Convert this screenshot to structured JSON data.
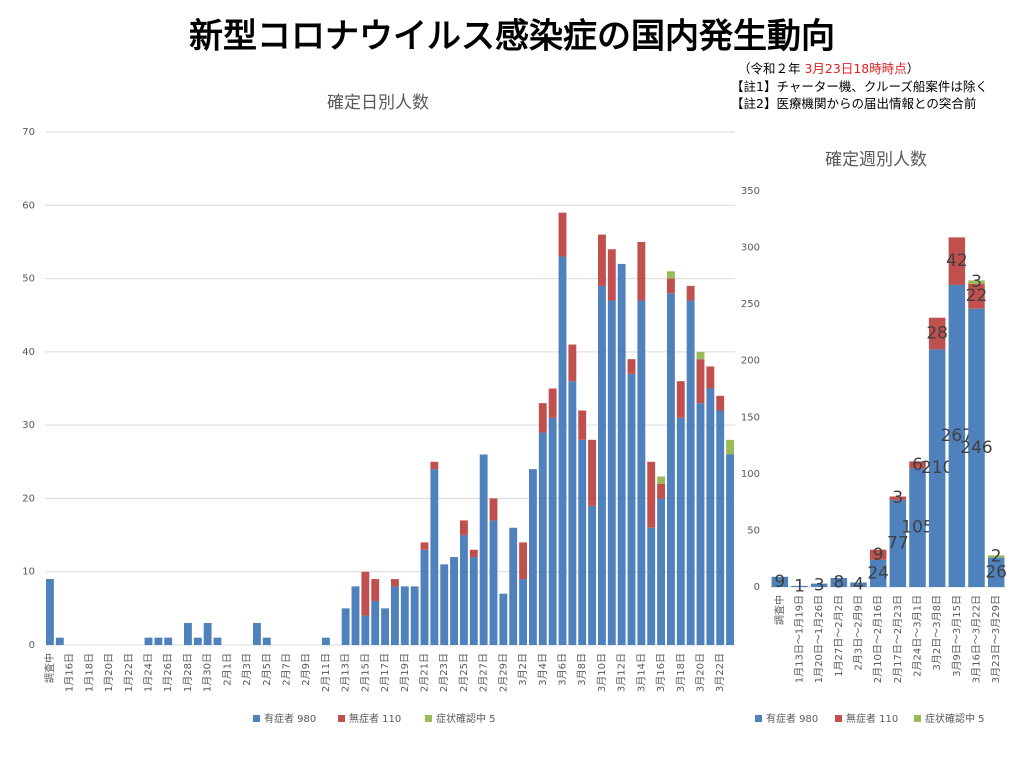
{
  "header": {
    "title": "新型コロナウイルス感染症の国内発生動向",
    "note_date": [
      "（令和２年 ",
      "3月23日18時時点",
      "）"
    ],
    "notes": [
      "【註1】チャーター機、クルーズ船案件は除く",
      "【註2】医療機関からの届出情報との突合前"
    ]
  },
  "chart_data": [
    {
      "type": "bar",
      "stacked": true,
      "title": "確定日別人数",
      "grid": true,
      "legend": "bottom",
      "data_labels": false,
      "ylim": [
        0,
        70
      ],
      "yticks": [
        0,
        10,
        20,
        30,
        40,
        50,
        60,
        70
      ],
      "categories": [
        "調査中",
        null,
        "1月16日",
        null,
        "1月18日",
        null,
        "1月20日",
        null,
        "1月22日",
        null,
        "1月24日",
        null,
        "1月26日",
        null,
        "1月28日",
        null,
        "1月30日",
        null,
        "2月1日",
        null,
        "2月3日",
        null,
        "2月5日",
        null,
        "2月7日",
        null,
        "2月9日",
        null,
        "2月11日",
        null,
        "2月13日",
        null,
        "2月15日",
        null,
        "2月17日",
        null,
        "2月19日",
        null,
        "2月21日",
        null,
        "2月23日",
        null,
        "2月25日",
        null,
        "2月27日",
        null,
        "2月29日",
        null,
        "3月2日",
        null,
        "3月4日",
        null,
        "3月6日",
        null,
        "3月8日",
        null,
        "3月10日",
        null,
        "3月12日",
        null,
        "3月14日",
        null,
        "3月16日",
        null,
        "3月18日",
        null,
        "3月20日",
        null,
        "3月22日",
        null
      ],
      "series": [
        {
          "name": "有症者 980",
          "color": "#4f81bd",
          "values": [
            9,
            1,
            0,
            0,
            0,
            0,
            0,
            0,
            0,
            0,
            1,
            1,
            1,
            0,
            3,
            1,
            3,
            1,
            0,
            0,
            0,
            3,
            1,
            0,
            0,
            0,
            0,
            0,
            1,
            0,
            5,
            8,
            4,
            6,
            5,
            8,
            8,
            8,
            13,
            24,
            11,
            12,
            15,
            12,
            26,
            17,
            7,
            16,
            9,
            24,
            29,
            31,
            53,
            36,
            28,
            19,
            49,
            47,
            52,
            37,
            47,
            16,
            20,
            48,
            31,
            47,
            33,
            35,
            32,
            26
          ]
        },
        {
          "name": "無症者 110",
          "color": "#c0504d",
          "values": [
            0,
            0,
            0,
            0,
            0,
            0,
            0,
            0,
            0,
            0,
            0,
            0,
            0,
            0,
            0,
            0,
            0,
            0,
            0,
            0,
            0,
            0,
            0,
            0,
            0,
            0,
            0,
            0,
            0,
            0,
            0,
            0,
            6,
            3,
            0,
            1,
            0,
            0,
            1,
            1,
            0,
            0,
            2,
            1,
            0,
            3,
            0,
            0,
            5,
            0,
            4,
            4,
            6,
            5,
            4,
            9,
            7,
            7,
            0,
            2,
            8,
            9,
            2,
            2,
            5,
            2,
            6,
            3,
            2,
            0
          ]
        },
        {
          "name": "症状確認中 5",
          "color": "#9bbb59",
          "values": [
            0,
            0,
            0,
            0,
            0,
            0,
            0,
            0,
            0,
            0,
            0,
            0,
            0,
            0,
            0,
            0,
            0,
            0,
            0,
            0,
            0,
            0,
            0,
            0,
            0,
            0,
            0,
            0,
            0,
            0,
            0,
            0,
            0,
            0,
            0,
            0,
            0,
            0,
            0,
            0,
            0,
            0,
            0,
            0,
            0,
            0,
            0,
            0,
            0,
            0,
            0,
            0,
            0,
            0,
            0,
            0,
            0,
            0,
            0,
            0,
            0,
            0,
            1,
            1,
            0,
            0,
            1,
            0,
            0,
            2
          ]
        }
      ]
    },
    {
      "type": "bar",
      "stacked": true,
      "title": "確定週別人数",
      "grid": false,
      "legend": "bottom",
      "data_labels": true,
      "ylim": [
        0,
        350
      ],
      "yticks": [
        0,
        50,
        100,
        150,
        200,
        250,
        300,
        350
      ],
      "categories": [
        "調査中",
        "1月13日～1月19日",
        "1月20日～1月26日",
        "1月27日～2月2日",
        "2月3日～2月9日",
        "2月10日～2月16日",
        "2月17日～2月23日",
        "2月24日～3月1日",
        "3月2日～3月8日",
        "3月9日～3月15日",
        "3月16日～3月22日",
        "3月23日～3月29日"
      ],
      "series": [
        {
          "name": "有症者 980",
          "color": "#4f81bd",
          "values": [
            9,
            1,
            3,
            8,
            4,
            24,
            77,
            105,
            210,
            267,
            246,
            26
          ]
        },
        {
          "name": "無症者 110",
          "color": "#c0504d",
          "values": [
            null,
            null,
            null,
            null,
            null,
            9,
            3,
            6,
            28,
            42,
            22,
            null
          ]
        },
        {
          "name": "症状確認中 5",
          "color": "#9bbb59",
          "values": [
            null,
            null,
            null,
            null,
            null,
            null,
            null,
            null,
            null,
            null,
            3,
            2
          ]
        }
      ]
    }
  ]
}
